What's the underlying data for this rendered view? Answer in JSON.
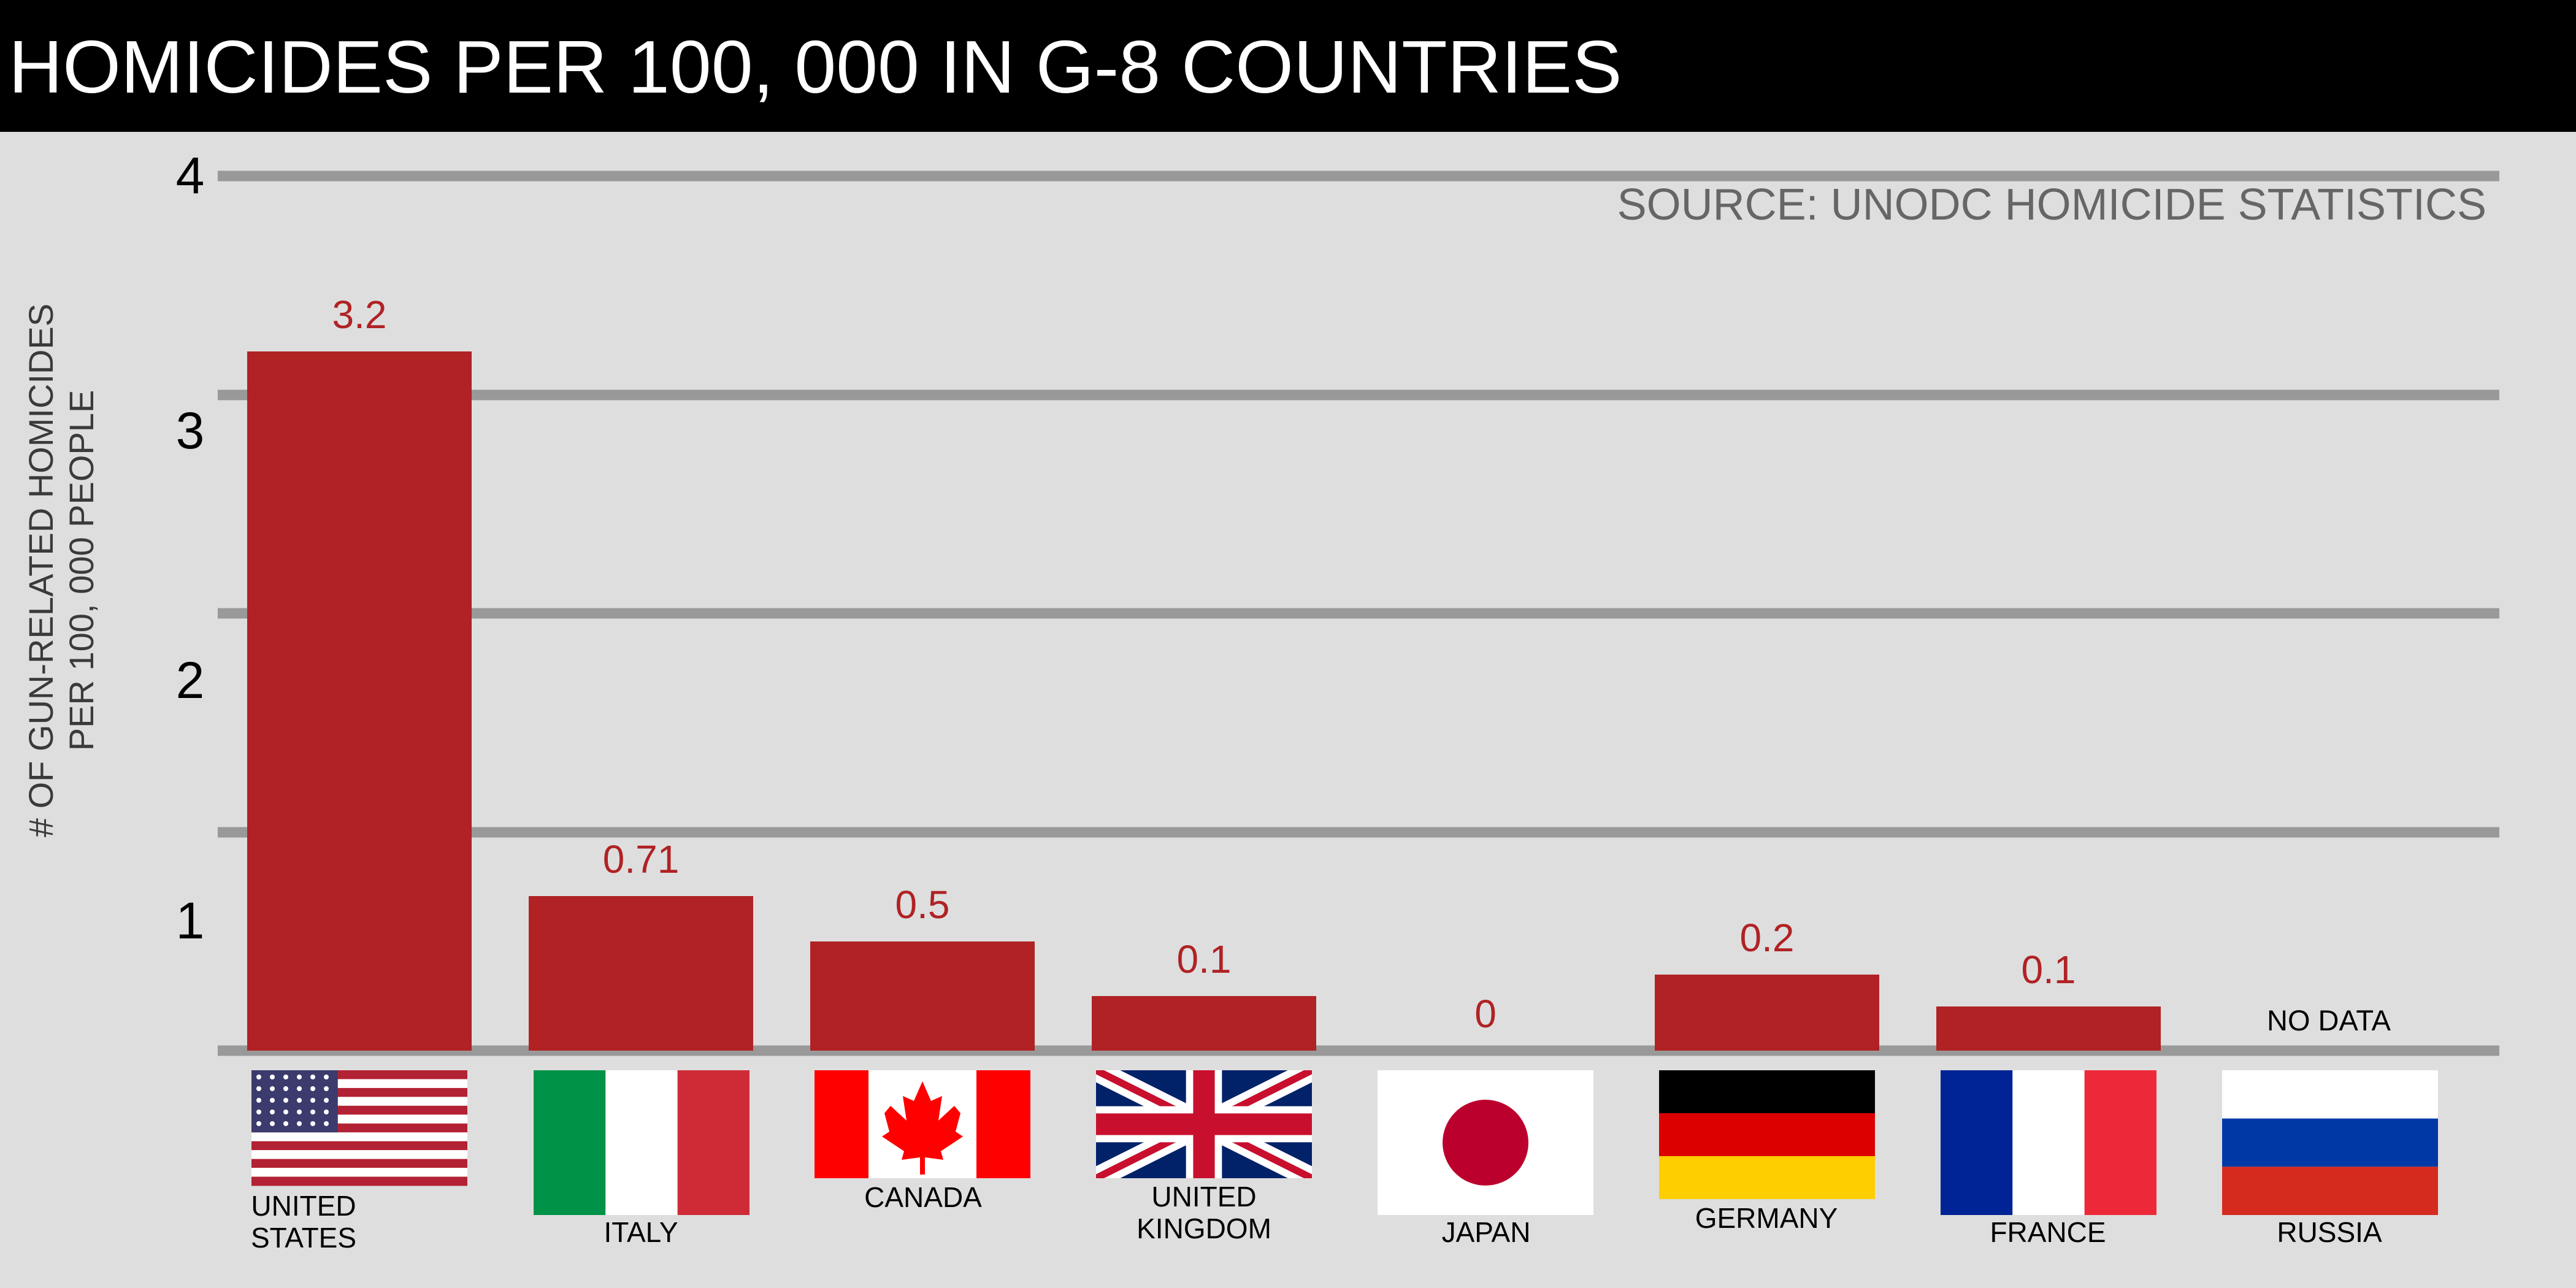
{
  "header": {
    "title": "HOMICIDES PER 100, 000 IN G-8 COUNTRIES"
  },
  "source_note": "SOURCE: UNODC HOMICIDE STATISTICS",
  "no_data_label": "NO DATA",
  "colors": {
    "bar": "#b02224",
    "value_label": "#b02224",
    "gridline": "#999999",
    "background": "#dedede",
    "title_bar": "#000000"
  },
  "chart_data": {
    "type": "bar",
    "title": "HOMICIDES PER 100, 000 IN G-8 COUNTRIES",
    "ylabel_lines": [
      "# OF GUN-RELATED HOMICIDES",
      "PER 100, 000 PEOPLE"
    ],
    "categories": [
      "UNITED STATES",
      "ITALY",
      "CANADA",
      "UNITED KINGDOM",
      "JAPAN",
      "GERMANY",
      "FRANCE",
      "RUSSIA"
    ],
    "values": [
      3.2,
      0.71,
      0.5,
      0.1,
      0,
      0.2,
      0.1,
      null
    ],
    "value_labels": [
      "3.2",
      "0.71",
      "0.5",
      "0.1",
      "0",
      "0.2",
      "0.1",
      "NO DATA"
    ],
    "flags": [
      "usa-flag-icon",
      "italy-flag-icon",
      "canada-flag-icon",
      "uk-flag-icon",
      "japan-flag-icon",
      "germany-flag-icon",
      "france-flag-icon",
      "russia-flag-icon"
    ],
    "ytick_labels": [
      "1",
      "2",
      "3",
      "4"
    ],
    "grid": true,
    "legend": "none"
  }
}
